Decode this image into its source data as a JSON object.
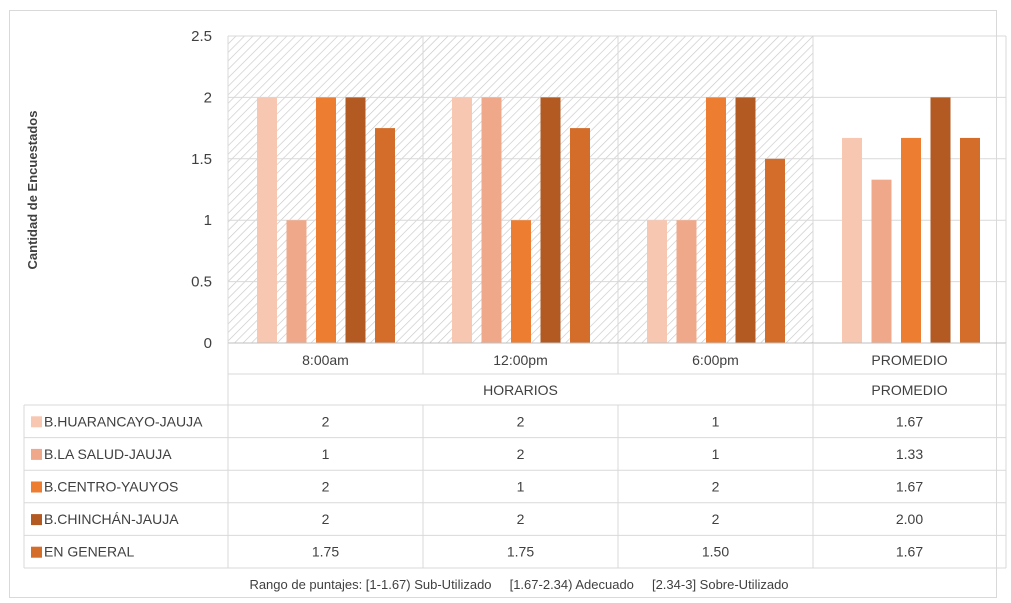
{
  "chart_data": {
    "type": "bar",
    "ylabel": "Cantidad de Encuestados",
    "ylim": [
      0,
      2.5
    ],
    "y_ticks": [
      "0",
      "0.5",
      "1",
      "1.5",
      "2",
      "2.5"
    ],
    "categories": [
      "8:00am",
      "12:00pm",
      "6:00pm",
      "PROMEDIO"
    ],
    "group_labels": [
      "HORARIOS",
      "PROMEDIO"
    ],
    "series": [
      {
        "name": "B.HUARANCAYO-JAUJA",
        "color": "#f8c7b2",
        "values": [
          2,
          2,
          1,
          1.67
        ],
        "labels": [
          "2",
          "2",
          "1",
          "1.67"
        ]
      },
      {
        "name": "B.LA SALUD-JAUJA",
        "color": "#f0a88a",
        "values": [
          1,
          2,
          1,
          1.33
        ],
        "labels": [
          "1",
          "2",
          "1",
          "1.33"
        ]
      },
      {
        "name": "B.CENTRO-YAUYOS",
        "color": "#ed7d31",
        "values": [
          2,
          1,
          2,
          1.67
        ],
        "labels": [
          "2",
          "1",
          "2",
          "1.67"
        ]
      },
      {
        "name": "B.CHINCHÁN-JAUJA",
        "color": "#b25a22",
        "values": [
          2,
          2,
          2,
          2.0
        ],
        "labels": [
          "2",
          "2",
          "2",
          "2.00"
        ]
      },
      {
        "name": "EN GENERAL",
        "color": "#d46d29",
        "values": [
          1.75,
          1.75,
          1.5,
          1.67
        ],
        "labels": [
          "1.75",
          "1.75",
          "1.50",
          "1.67"
        ]
      }
    ],
    "shaded_region_categories": [
      "8:00am",
      "12:00pm",
      "6:00pm"
    ],
    "grid": true,
    "legend": "data-table",
    "footnote": "Rango de puntajes: [1-1.67) Sub-Utilizado     [1.67-2.34) Adecuado     [2.34-3] Sobre-Utilizado"
  }
}
